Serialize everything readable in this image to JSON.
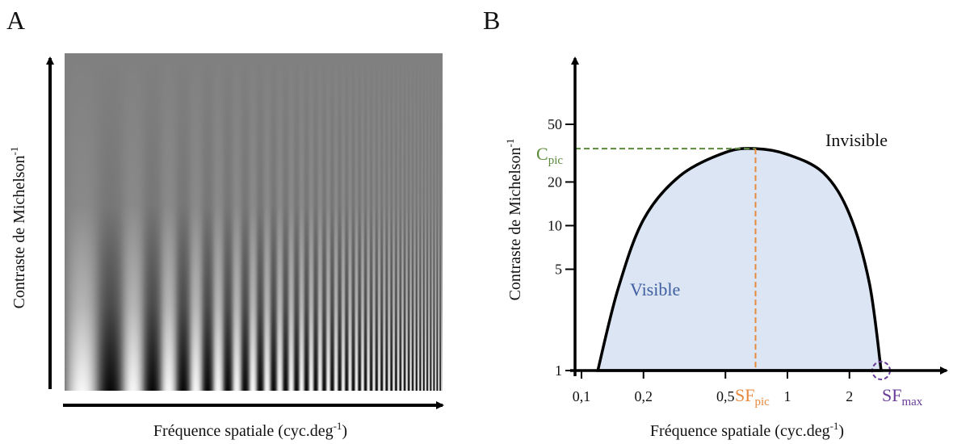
{
  "panel_a": {
    "letter": "A",
    "xlabel": "Fréquence spatiale (cyc.deg",
    "xlabel_sup": "-1",
    "xlabel_end": ")",
    "ylabel": "Contraste de Michelson",
    "ylabel_sup": "-1"
  },
  "panel_b": {
    "letter": "B",
    "xlabel": "Fréquence spatiale (cyc.deg",
    "xlabel_sup": "-1",
    "xlabel_end": ")",
    "ylabel": "Contraste de Michelson",
    "ylabel_sup": "-1",
    "invisible_label": "Invisible",
    "visible_label": "Visible",
    "c_pic": {
      "main": "C",
      "sub": "pic"
    },
    "sf_pic": {
      "main": "SF",
      "sub": "pic"
    },
    "sf_max": {
      "main": "SF",
      "sub": "max"
    }
  },
  "colors": {
    "axis": "#000000",
    "curve_fill": "#dbe5f3",
    "curve_stroke": "#000000",
    "c_pic": "#5a8a3a",
    "sf_pic": "#e58a3e",
    "sf_max": "#6a3d9a",
    "visible_text": "#3f5ea0"
  },
  "chart_data": {
    "type": "area",
    "x_scale": "log",
    "y_scale": "log",
    "xlabel": "Fréquence spatiale (cyc.deg-1)",
    "ylabel": "Contraste de Michelson-1",
    "x_ticks": [
      "0,1",
      "0,2",
      "0,5",
      "1",
      "2"
    ],
    "x_tick_values": [
      0.1,
      0.2,
      0.5,
      1,
      2
    ],
    "y_ticks": [
      "1",
      "5",
      "10",
      "20",
      "50"
    ],
    "y_tick_values": [
      1,
      5,
      10,
      20,
      50
    ],
    "series": [
      {
        "name": "Visible",
        "x": [
          0.12,
          0.15,
          0.2,
          0.3,
          0.5,
          0.7,
          1.0,
          1.5,
          2.0,
          2.5,
          2.85
        ],
        "y": [
          1,
          3.6,
          11,
          22,
          32,
          34,
          31,
          23,
          12,
          4,
          1
        ]
      }
    ],
    "annotations": {
      "c_pic": 34,
      "sf_pic": 0.7,
      "sf_max": 2.85
    }
  }
}
